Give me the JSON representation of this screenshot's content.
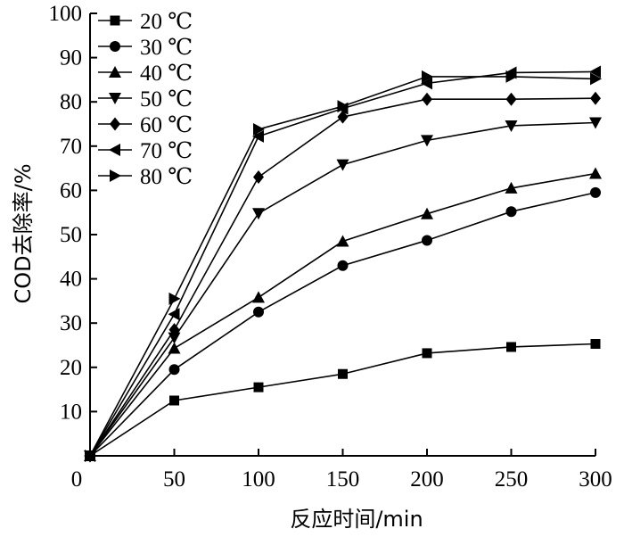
{
  "chart_data": {
    "type": "line",
    "xlabel": "反应时间/min",
    "ylabel": "COD去除率/%",
    "xlim": [
      0,
      300
    ],
    "ylim": [
      0,
      100
    ],
    "xticks": [
      0,
      50,
      100,
      150,
      200,
      250,
      300
    ],
    "yticks": [
      10,
      20,
      30,
      40,
      50,
      60,
      70,
      80,
      90,
      100
    ],
    "origin_label": "0",
    "x": [
      0,
      50,
      100,
      150,
      200,
      250,
      300
    ],
    "grid": false,
    "legend_position": "top-left",
    "series": [
      {
        "name": "20 ℃",
        "marker": "square",
        "values": [
          0,
          12.5,
          15.5,
          18.5,
          23.2,
          24.6,
          25.3
        ]
      },
      {
        "name": "30 ℃",
        "marker": "circle",
        "values": [
          0,
          19.5,
          32.5,
          43,
          48.7,
          55.2,
          59.5
        ]
      },
      {
        "name": "40 ℃",
        "marker": "triangle-up",
        "values": [
          0,
          24.3,
          35.8,
          48.5,
          54.7,
          60.5,
          63.8
        ]
      },
      {
        "name": "50 ℃",
        "marker": "triangle-down",
        "values": [
          0,
          26.7,
          54.8,
          65.8,
          71.3,
          74.6,
          75.3
        ]
      },
      {
        "name": "60 ℃",
        "marker": "diamond",
        "values": [
          0,
          28.5,
          63,
          76.6,
          80.6,
          80.6,
          80.8
        ]
      },
      {
        "name": "70 ℃",
        "marker": "triangle-left",
        "values": [
          0,
          32,
          72.2,
          78.5,
          84.2,
          86.6,
          86.8
        ]
      },
      {
        "name": "80 ℃",
        "marker": "triangle-right",
        "values": [
          0,
          35.5,
          73.8,
          79,
          85.7,
          85.7,
          85.2
        ]
      }
    ]
  }
}
